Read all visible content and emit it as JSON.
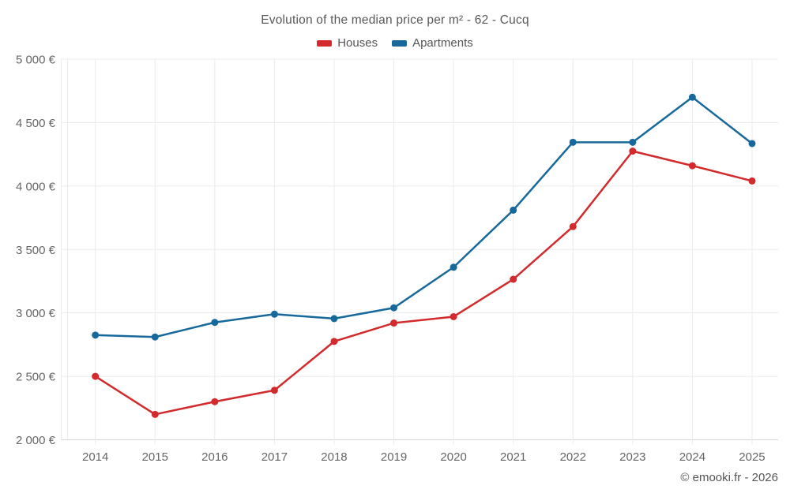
{
  "title": "Evolution of the median price per m² - 62 - Cucq",
  "footer": "© emooki.fr - 2026",
  "legend": {
    "items": [
      {
        "label": "Houses",
        "color": "#d32b2d"
      },
      {
        "label": "Apartments",
        "color": "#17699c"
      }
    ]
  },
  "chart_data": {
    "type": "line",
    "title": "Evolution of the median price per m² - 62 - Cucq",
    "categories": [
      "2014",
      "2015",
      "2016",
      "2017",
      "2018",
      "2019",
      "2020",
      "2021",
      "2022",
      "2023",
      "2024",
      "2025"
    ],
    "series": [
      {
        "name": "Houses",
        "color": "#d32b2d",
        "values": [
          2500,
          2200,
          2300,
          2390,
          2775,
          2920,
          2970,
          3265,
          3680,
          4275,
          4160,
          4040
        ]
      },
      {
        "name": "Apartments",
        "color": "#17699c",
        "values": [
          2825,
          2810,
          2925,
          2990,
          2955,
          3040,
          3360,
          3810,
          4345,
          4345,
          4700,
          4335
        ]
      }
    ],
    "xlabel": "",
    "ylabel": "",
    "ylim": [
      2000,
      5000
    ],
    "grid": true,
    "legend_position": "top",
    "y_ticks": [
      {
        "value": 2000,
        "label": "2 000 €"
      },
      {
        "value": 2500,
        "label": "2 500 €"
      },
      {
        "value": 3000,
        "label": "3 000 €"
      },
      {
        "value": 3500,
        "label": "3 500 €"
      },
      {
        "value": 4000,
        "label": "4 000 €"
      },
      {
        "value": 4500,
        "label": "4 500 €"
      },
      {
        "value": 5000,
        "label": "5 000 €"
      }
    ]
  }
}
